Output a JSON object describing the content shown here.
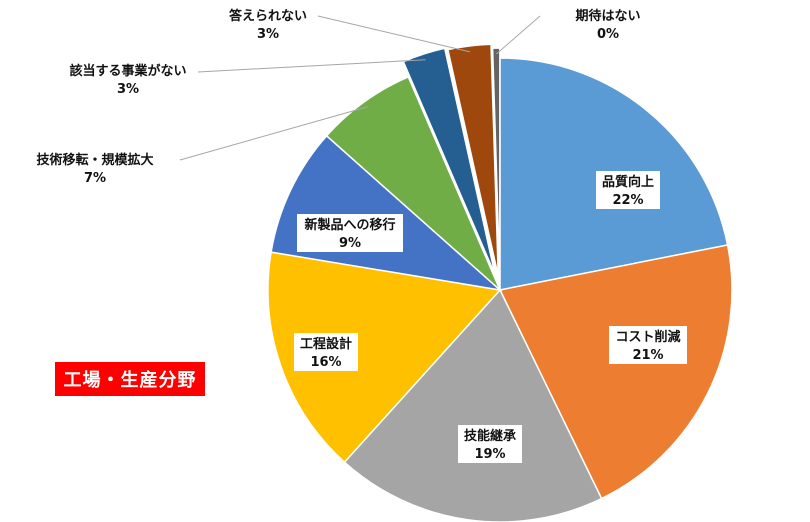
{
  "tag": {
    "text": "工場・生産分野"
  },
  "chart_data": {
    "type": "pie",
    "title": "",
    "start_angle_deg": 0,
    "direction": "clockwise",
    "slices": [
      {
        "label": "品質向上",
        "pct_label": "22%",
        "value": 22,
        "color": "#5b9bd5"
      },
      {
        "label": "コスト削減",
        "pct_label": "21%",
        "value": 21,
        "color": "#ed7d31"
      },
      {
        "label": "技能継承",
        "pct_label": "19%",
        "value": 19,
        "color": "#a5a5a5"
      },
      {
        "label": "工程設計",
        "pct_label": "16%",
        "value": 16,
        "color": "#ffc000"
      },
      {
        "label": "新製品への移行",
        "pct_label": "9%",
        "value": 9,
        "color": "#4472c4"
      },
      {
        "label": "技術移転・規模拡大",
        "pct_label": "7%",
        "value": 7,
        "color": "#70ad47"
      },
      {
        "label": "該当する事業がない",
        "pct_label": "3%",
        "value": 3,
        "color": "#255e91"
      },
      {
        "label": "答えられない",
        "pct_label": "3%",
        "value": 3,
        "color": "#9e480e"
      },
      {
        "label": "期待はない",
        "pct_label": "0%",
        "value": 0.5,
        "color": "#636363"
      }
    ]
  }
}
